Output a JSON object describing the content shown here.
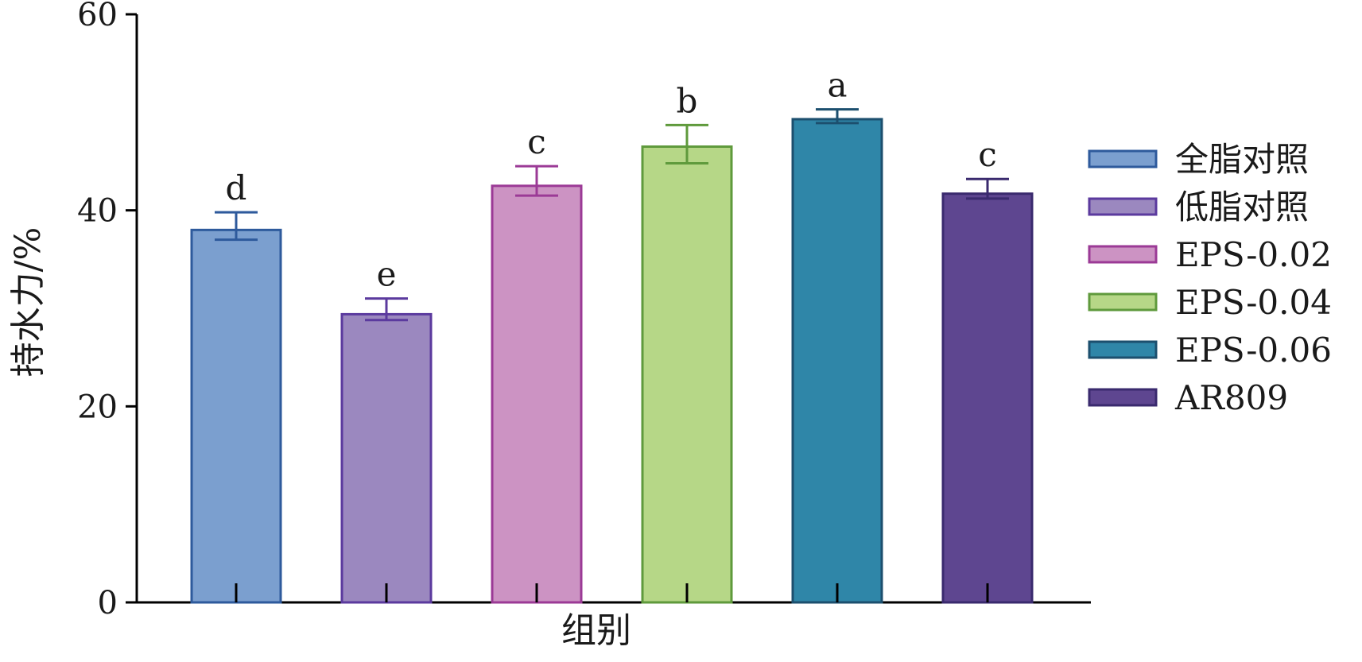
{
  "chart_data": {
    "type": "bar",
    "xlabel": "组别",
    "ylabel": "持水力/%",
    "ylim": [
      0,
      60
    ],
    "yticks": [
      0,
      20,
      40,
      60
    ],
    "grid": false,
    "legend_position": "right",
    "categories": [
      "全脂对照",
      "低脂对照",
      "EPS-0.02",
      "EPS-0.04",
      "EPS-0.06",
      "AR809"
    ],
    "values": [
      38.0,
      29.4,
      42.5,
      46.5,
      49.3,
      41.7
    ],
    "error_upper": [
      39.8,
      31.0,
      44.5,
      48.7,
      50.3,
      43.2
    ],
    "error_lower": [
      37.0,
      28.8,
      41.5,
      44.8,
      48.9,
      41.2
    ],
    "significance_labels": [
      "d",
      "e",
      "c",
      "b",
      "a",
      "c"
    ],
    "colors": [
      "#7b9fcf",
      "#9b88bf",
      "#cc93c3",
      "#b6d787",
      "#2f86a8",
      "#5e4690"
    ],
    "edge_colors": [
      "#2e5a9c",
      "#5b3a9e",
      "#9b3a96",
      "#5f9a3c",
      "#1c4f6e",
      "#3a2a6e"
    ]
  }
}
